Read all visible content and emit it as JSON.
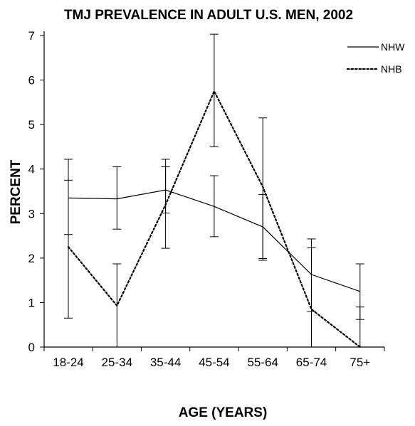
{
  "chart_data": {
    "type": "line",
    "title": "TMJ PREVALENCE IN ADULT U.S. MEN, 2002",
    "xlabel": "AGE (YEARS)",
    "ylabel": "PERCENT",
    "categories": [
      "18-24",
      "25-34",
      "35-44",
      "45-54",
      "55-64",
      "65-74",
      "75+"
    ],
    "ylim": [
      0,
      7
    ],
    "yticks": [
      "0",
      "1",
      "2",
      "3",
      "4",
      "5",
      "6",
      "7"
    ],
    "grid": false,
    "legend_position": "top-right",
    "series": [
      {
        "name": "NHW",
        "style": "solid",
        "values": [
          3.35,
          3.33,
          3.53,
          3.16,
          2.7,
          1.63,
          1.25
        ],
        "error_low": [
          2.53,
          2.65,
          3.01,
          2.48,
          1.95,
          0.8,
          0.62
        ],
        "error_high": [
          4.22,
          4.05,
          4.05,
          3.85,
          3.43,
          2.43,
          1.87
        ]
      },
      {
        "name": "NHB",
        "style": "dotted",
        "values": [
          2.25,
          0.93,
          3.2,
          5.75,
          3.6,
          0.85,
          0.0
        ],
        "error_low": [
          0.65,
          0.0,
          2.22,
          4.5,
          1.99,
          0.0,
          0.0
        ],
        "error_high": [
          3.75,
          1.87,
          4.22,
          7.03,
          5.15,
          2.23,
          0.9
        ]
      }
    ]
  },
  "colors": {
    "ink": "#000000",
    "background": "#ffffff"
  }
}
